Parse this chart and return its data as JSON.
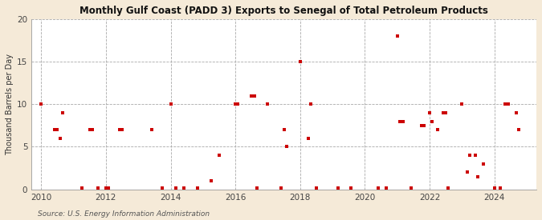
{
  "title": "Monthly Gulf Coast (PADD 3) Exports to Senegal of Total Petroleum Products",
  "ylabel": "Thousand Barrels per Day",
  "source": "Source: U.S. Energy Information Administration",
  "background_color": "#f5ead8",
  "plot_background_color": "#ffffff",
  "marker_color": "#cc0000",
  "xlim": [
    2009.7,
    2025.3
  ],
  "ylim": [
    0,
    20
  ],
  "yticks": [
    0,
    5,
    10,
    15,
    20
  ],
  "xticks": [
    2010,
    2012,
    2014,
    2016,
    2018,
    2020,
    2022,
    2024
  ],
  "data_x": [
    2010.0,
    2010.42,
    2010.5,
    2010.58,
    2010.67,
    2011.25,
    2011.5,
    2011.58,
    2011.75,
    2012.0,
    2012.08,
    2012.42,
    2012.5,
    2013.42,
    2013.75,
    2014.0,
    2014.17,
    2014.42,
    2014.83,
    2015.25,
    2015.5,
    2016.0,
    2016.08,
    2016.5,
    2016.58,
    2016.67,
    2017.0,
    2017.42,
    2017.5,
    2017.58,
    2018.0,
    2018.25,
    2018.33,
    2018.5,
    2019.17,
    2019.58,
    2020.42,
    2020.67,
    2021.0,
    2021.08,
    2021.17,
    2021.42,
    2021.75,
    2021.83,
    2022.0,
    2022.08,
    2022.25,
    2022.42,
    2022.5,
    2022.58,
    2023.0,
    2023.17,
    2023.25,
    2023.42,
    2023.5,
    2023.67,
    2024.0,
    2024.17,
    2024.33,
    2024.42,
    2024.67,
    2024.75
  ],
  "data_y": [
    10.0,
    7.0,
    7.0,
    6.0,
    9.0,
    0.2,
    7.0,
    7.0,
    0.2,
    0.2,
    0.2,
    7.0,
    7.0,
    7.0,
    0.2,
    10.0,
    0.2,
    0.2,
    0.2,
    1.0,
    4.0,
    10.0,
    10.0,
    11.0,
    11.0,
    0.2,
    10.0,
    0.2,
    7.0,
    5.0,
    15.0,
    6.0,
    10.0,
    0.2,
    0.2,
    0.2,
    0.2,
    0.2,
    18.0,
    8.0,
    8.0,
    0.2,
    7.5,
    7.5,
    9.0,
    8.0,
    7.0,
    9.0,
    9.0,
    0.2,
    10.0,
    2.0,
    4.0,
    4.0,
    1.5,
    3.0,
    0.2,
    0.2,
    10.0,
    10.0,
    9.0,
    7.0
  ]
}
